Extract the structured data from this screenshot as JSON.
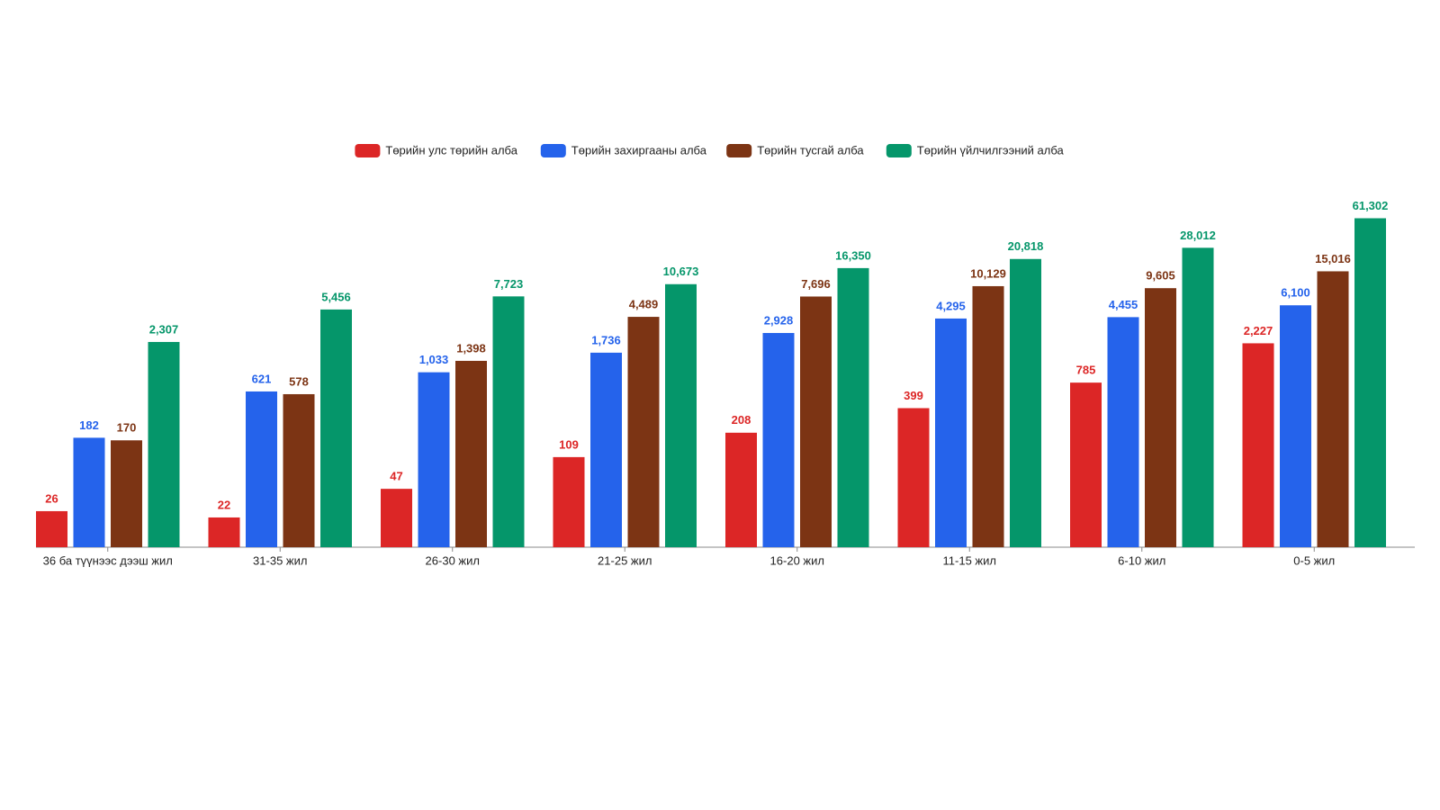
{
  "chart_data": {
    "type": "bar",
    "log_scale": true,
    "categories": [
      "36 ба түүнээс дээш жил",
      "31-35 жил",
      "26-30 жил",
      "21-25 жил",
      "16-20 жил",
      "11-15 жил",
      "6-10 жил",
      "0-5 жил"
    ],
    "ylim": [
      10,
      100000
    ],
    "series": [
      {
        "name": "Төрийн улс төрийн алба",
        "color": "#dc2626",
        "values": [
          26,
          22,
          47,
          109,
          208,
          399,
          785,
          2227
        ],
        "value_labels": [
          "26",
          "22",
          "47",
          "109",
          "208",
          "399",
          "785",
          "2,227"
        ]
      },
      {
        "name": "Төрийн захиргааны алба",
        "color": "#2563eb",
        "values": [
          182,
          621,
          1033,
          1736,
          2928,
          4295,
          4455,
          6100
        ],
        "value_labels": [
          "182",
          "621",
          "1,033",
          "1,736",
          "2,928",
          "4,295",
          "4,455",
          "6,100"
        ]
      },
      {
        "name": "Төрийн тусгай алба",
        "color": "#7c3414",
        "values": [
          170,
          578,
          1398,
          4489,
          7696,
          10129,
          9605,
          15016
        ],
        "value_labels": [
          "170",
          "578",
          "1,398",
          "4,489",
          "7,696",
          "10,129",
          "9,605",
          "15,016"
        ]
      },
      {
        "name": "Төрийн үйлчилгээний алба",
        "color": "#05966a",
        "values": [
          2307,
          5456,
          7723,
          10673,
          16350,
          20818,
          28012,
          61302
        ],
        "value_labels": [
          "2,307",
          "5,456",
          "7,723",
          "10,673",
          "16,350",
          "20,818",
          "28,012",
          "61,302"
        ]
      }
    ]
  }
}
